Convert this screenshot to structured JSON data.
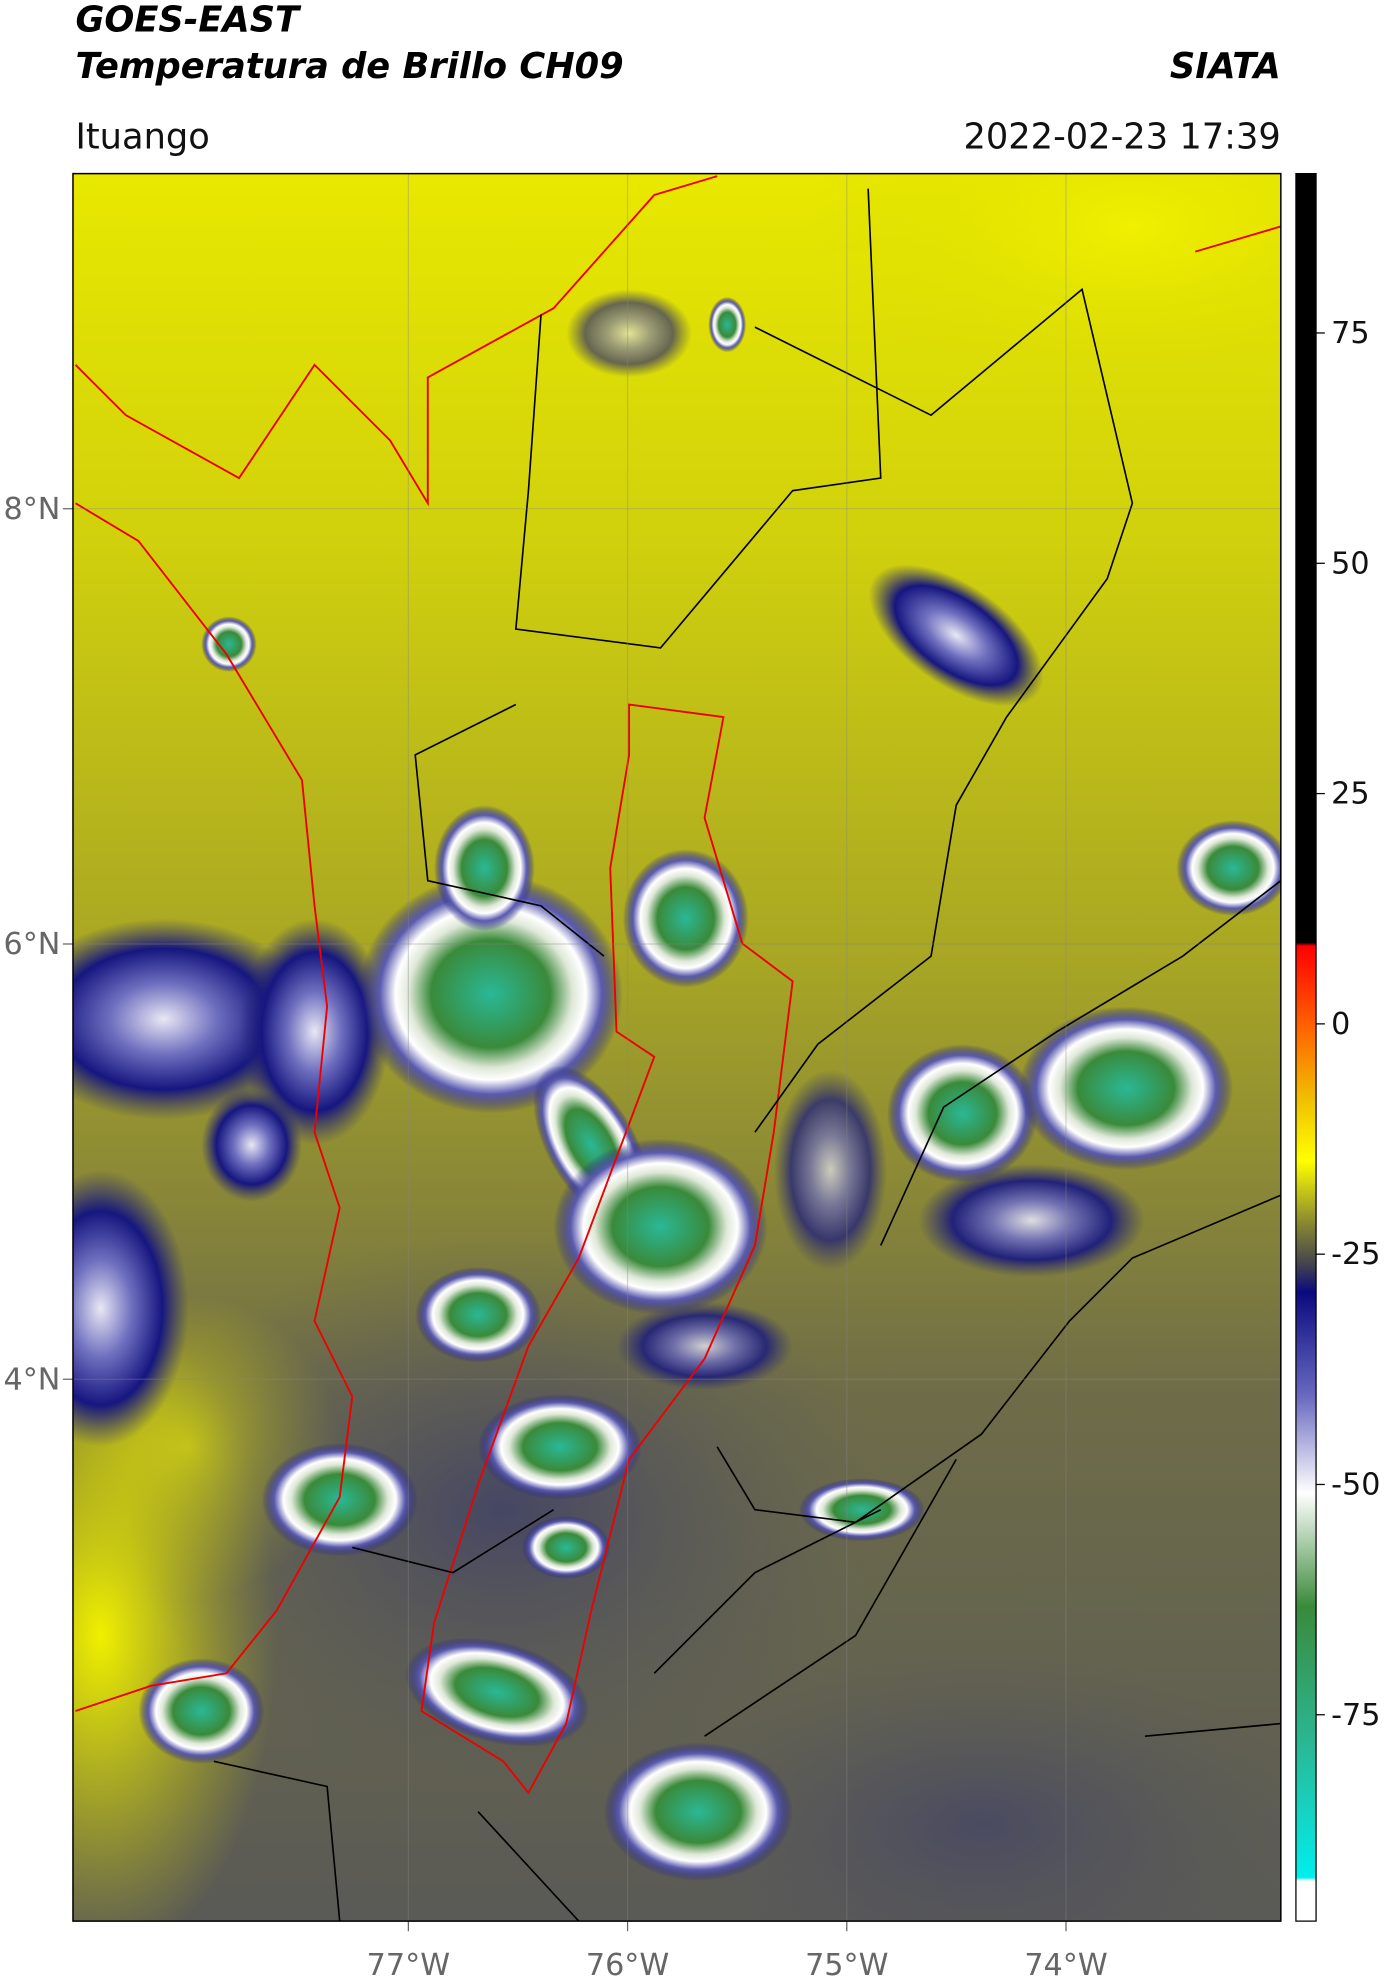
{
  "header": {
    "title": "GOES-EAST",
    "subtitle": "Temperatura de Brillo CH09",
    "brand": "SIATA",
    "location": "Ituango",
    "timestamp": "2022-02-23 17:39"
  },
  "map": {
    "lon_range": [
      -78.53,
      -73.02
    ],
    "lat_range": [
      1.51,
      9.54
    ],
    "lon_ticks": [
      {
        "value": -77,
        "label": "77°W"
      },
      {
        "value": -76,
        "label": "76°W"
      },
      {
        "value": -75,
        "label": "75°W"
      },
      {
        "value": -74,
        "label": "74°W"
      }
    ],
    "lat_ticks": [
      {
        "value": 8,
        "label": "8°N"
      },
      {
        "value": 6,
        "label": "6°N"
      },
      {
        "value": 4,
        "label": "4°N"
      }
    ]
  },
  "colorbar": {
    "range": [
      -97.4,
      92.3
    ],
    "ticks": [
      75,
      50,
      25,
      0,
      -25,
      -50,
      -75
    ]
  }
}
